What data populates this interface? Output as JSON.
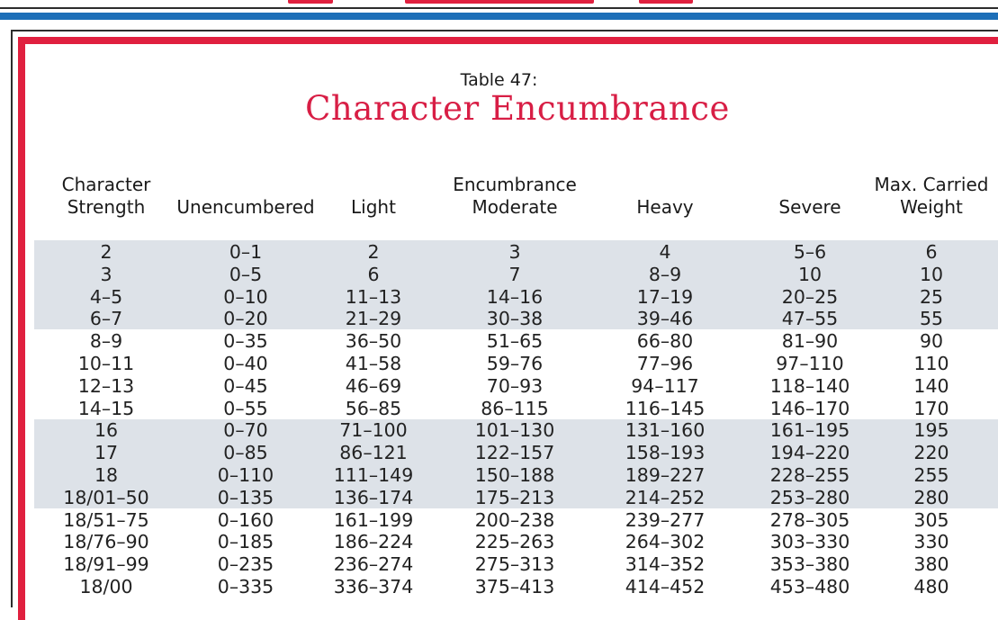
{
  "table": {
    "number_label": "Table 47:",
    "title": "Character Encumbrance",
    "headers": [
      {
        "line1": "Character",
        "line2": "Strength"
      },
      {
        "line1": "",
        "line2": "Unencumbered"
      },
      {
        "line1": "",
        "line2": "Light"
      },
      {
        "line1": "Encumbrance",
        "line2": "Moderate"
      },
      {
        "line1": "",
        "line2": "Heavy"
      },
      {
        "line1": "",
        "line2": "Severe"
      },
      {
        "line1": "Max. Carried",
        "line2": "Weight"
      }
    ],
    "rows": [
      [
        "2",
        "0–1",
        "2",
        "3",
        "4",
        "5–6",
        "6"
      ],
      [
        "3",
        "0–5",
        "6",
        "7",
        "8–9",
        "10",
        "10"
      ],
      [
        "4–5",
        "0–10",
        "11–13",
        "14–16",
        "17–19",
        "20–25",
        "25"
      ],
      [
        "6–7",
        "0–20",
        "21–29",
        "30–38",
        "39–46",
        "47–55",
        "55"
      ],
      [
        "8–9",
        "0–35",
        "36–50",
        "51–65",
        "66–80",
        "81–90",
        "90"
      ],
      [
        "10–11",
        "0–40",
        "41–58",
        "59–76",
        "77–96",
        "97–110",
        "110"
      ],
      [
        "12–13",
        "0–45",
        "46–69",
        "70–93",
        "94–117",
        "118–140",
        "140"
      ],
      [
        "14–15",
        "0–55",
        "56–85",
        "86–115",
        "116–145",
        "146–170",
        "170"
      ],
      [
        "16",
        "0–70",
        "71–100",
        "101–130",
        "131–160",
        "161–195",
        "195"
      ],
      [
        "17",
        "0–85",
        "86–121",
        "122–157",
        "158–193",
        "194–220",
        "220"
      ],
      [
        "18",
        "0–110",
        "111–149",
        "150–188",
        "189–227",
        "228–255",
        "255"
      ],
      [
        "18/01–50",
        "0–135",
        "136–174",
        "175–213",
        "214–252",
        "253–280",
        "280"
      ],
      [
        "18/51–75",
        "0–160",
        "161–199",
        "200–238",
        "239–277",
        "278–305",
        "305"
      ],
      [
        "18/76–90",
        "0–185",
        "186–224",
        "225–263",
        "264–302",
        "303–330",
        "330"
      ],
      [
        "18/91–99",
        "0–235",
        "236–274",
        "275–313",
        "314–352",
        "353–380",
        "380"
      ],
      [
        "18/00",
        "0–335",
        "336–374",
        "375–413",
        "414–452",
        "453–480",
        "480"
      ]
    ]
  },
  "colors": {
    "accent_red": "#e0203f",
    "rule_blue": "#1d6fb8",
    "band_gray": "#dde2e8",
    "title_red": "#d81e45"
  }
}
